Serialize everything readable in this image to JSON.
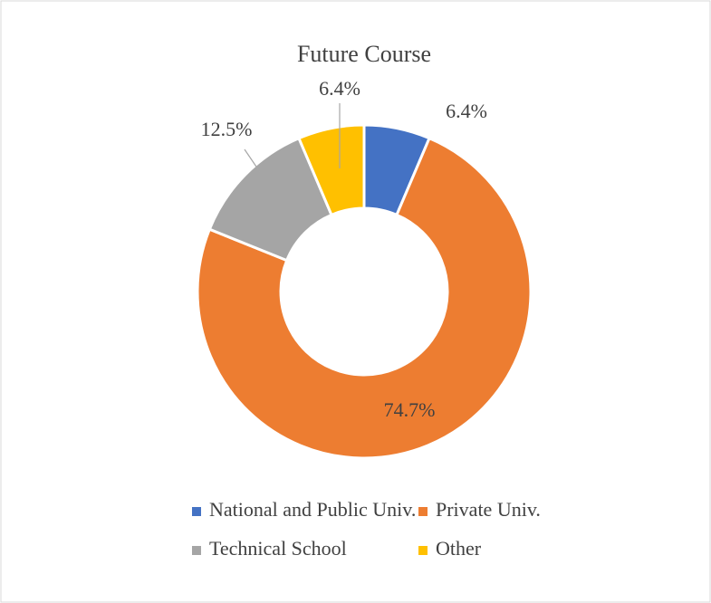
{
  "chart_data": {
    "type": "donut",
    "title": "Future Course",
    "categories": [
      "National and Public Univ.",
      "Private Univ.",
      "Technical School",
      "Other"
    ],
    "values": [
      6.4,
      74.7,
      12.5,
      6.4
    ],
    "value_labels": [
      "6.4%",
      "74.7%",
      "12.5%",
      "6.4%"
    ],
    "colors": [
      "#4472c4",
      "#ed7d31",
      "#a5a5a5",
      "#ffc000"
    ],
    "legend": "bottom"
  }
}
